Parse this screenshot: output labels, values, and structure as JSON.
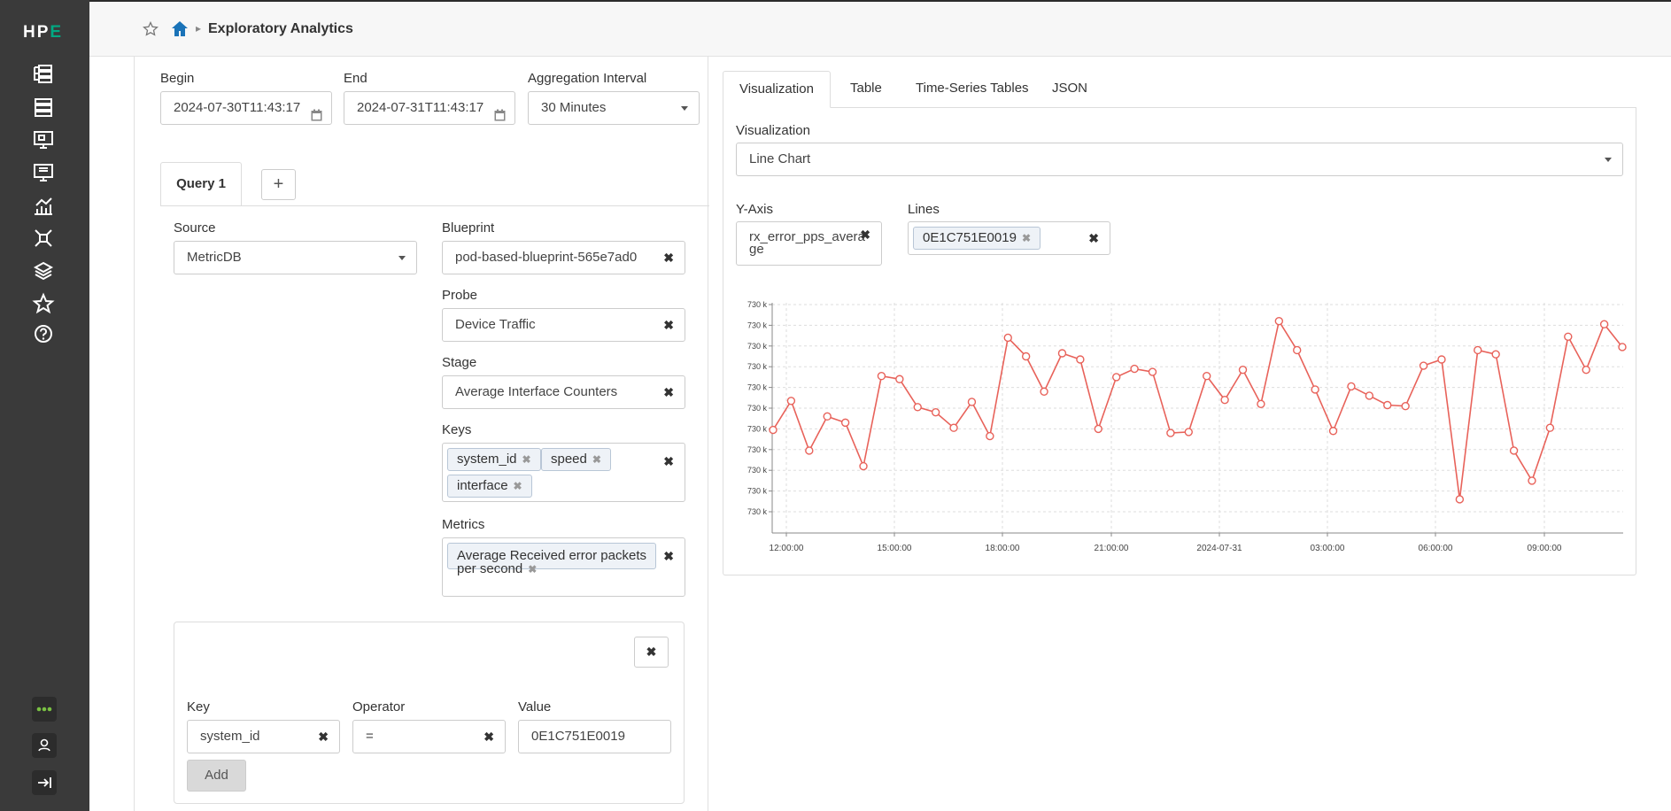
{
  "sidebar": {
    "logo_prefix": "HP",
    "logo_accent": "E",
    "icons": [
      "blueprints-icon",
      "devices-icon",
      "design-icon",
      "resources-icon",
      "analytics-icon",
      "platform-icon",
      "external-systems-icon",
      "favorites-icon",
      "help-icon"
    ],
    "bottom_icons": [
      "more-icon",
      "user-icon",
      "logout-icon"
    ],
    "accent_color": "#01a982"
  },
  "header": {
    "title": "Exploratory Analytics"
  },
  "time": {
    "begin_label": "Begin",
    "begin_value": "2024-07-30T11:43:17",
    "end_label": "End",
    "end_value": "2024-07-31T11:43:17",
    "interval_label": "Aggregation Interval",
    "interval_value": "30 Minutes"
  },
  "query": {
    "tab_label": "Query 1",
    "add_tab": "+",
    "source_label": "Source",
    "source_value": "MetricDB",
    "blueprint_label": "Blueprint",
    "blueprint_value": "pod-based-blueprint-565e7ad0",
    "probe_label": "Probe",
    "probe_value": "Device Traffic",
    "stage_label": "Stage",
    "stage_value": "Average Interface Counters",
    "keys_label": "Keys",
    "keys": [
      "system_id",
      "speed",
      "interface"
    ],
    "metrics_label": "Metrics",
    "metric_line1": "Average Received error packets",
    "metric_line2": "per second"
  },
  "filter": {
    "key_label": "Key",
    "key_value": "system_id",
    "operator_label": "Operator",
    "operator_value": "=",
    "value_label": "Value",
    "value_value": "0E1C751E0019",
    "add_label": "Add"
  },
  "viz": {
    "tabs": [
      "Visualization",
      "Table",
      "Time-Series Tables",
      "JSON"
    ],
    "viz_label": "Visualization",
    "viz_value": "Line Chart",
    "yaxis_label": "Y-Axis",
    "yaxis_line1": "rx_error_pps_avera",
    "yaxis_line2": "ge",
    "lines_label": "Lines",
    "lines_value": "0E1C751E0019"
  },
  "chart_data": {
    "type": "line",
    "series_color": "#e8625a",
    "x_ticks": [
      "12:00:00",
      "15:00:00",
      "18:00:00",
      "21:00:00",
      "2024-07-31",
      "03:00:00",
      "06:00:00",
      "09:00:00"
    ],
    "y_ticks": [
      "730 k",
      "730 k",
      "730 k",
      "730 k",
      "730 k",
      "730 k",
      "730 k",
      "730 k",
      "730 k",
      "730 k",
      "730 k"
    ],
    "ylim": [
      0,
      10
    ],
    "values": [
      3.95,
      5.35,
      2.95,
      4.6,
      4.3,
      2.2,
      6.55,
      6.4,
      5.05,
      4.8,
      4.05,
      5.3,
      3.65,
      8.4,
      7.5,
      5.8,
      7.65,
      7.35,
      4.0,
      6.5,
      6.9,
      6.75,
      3.8,
      3.85,
      6.55,
      5.4,
      6.85,
      5.2,
      9.2,
      7.8,
      5.9,
      3.9,
      6.05,
      5.6,
      5.15,
      5.1,
      7.05,
      7.35,
      0.6,
      7.8,
      7.6,
      2.95,
      1.5,
      4.05,
      8.45,
      6.85,
      9.05,
      7.95
    ]
  }
}
